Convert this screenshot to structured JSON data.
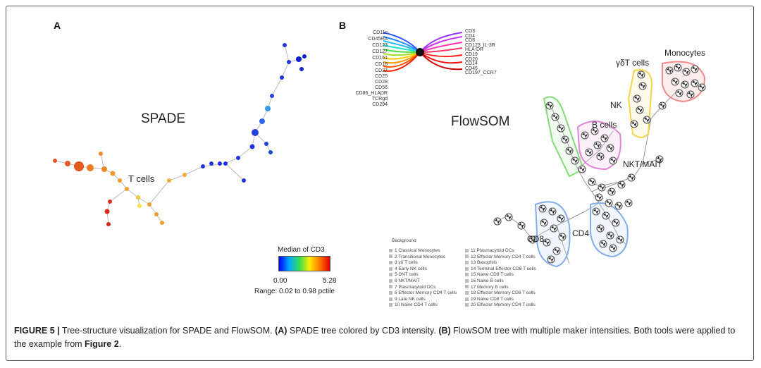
{
  "panel_a": {
    "letter": "A",
    "title": "SPADE",
    "label_tcells": "T cells",
    "colorbar": {
      "title": "Median of CD3",
      "min_label": "0.00",
      "max_label": "5.28",
      "range_label": "Range: 0.02 to 0.98 pctile",
      "gradient": [
        "#0000ff",
        "#00aaff",
        "#33dd55",
        "#ffee00",
        "#ff7700",
        "#dd0000"
      ]
    }
  },
  "panel_b": {
    "letter": "B",
    "title": "FlowSOM",
    "radial_markers_left": [
      "CD11c",
      "CD45RA",
      "CD123",
      "CD127",
      "CD161",
      "CD16",
      "CD27",
      "CD25",
      "CD28",
      "CD56",
      "CD86_HLADR",
      "TCRgd",
      "CD294"
    ],
    "radial_markers_right": [
      "CD3",
      "CD4",
      "CD8",
      "CD123_IL-3R",
      "HLA-DR",
      "CD19",
      "CD20",
      "CD14",
      "CD45",
      "CD197_CCR7"
    ],
    "cluster_labels": {
      "monocytes": "Monocytes",
      "gdt": "γδT cells",
      "nk": "NK",
      "bcells": "B cells",
      "nkt": "NKT/MAIT",
      "cd8": "CD8",
      "cd4": "CD4"
    },
    "legend_title": "Background",
    "legend_col1": [
      "1 Classical Monocytes",
      "2 Transitional Monocytes",
      "3 γδ T cells",
      "4 Early NK cells",
      "5 DNT cells",
      "6 NKT/MAIT",
      "7 Plasmacytoid DCs",
      "8 Effector Memory CD4 T cells",
      "9 Late NK cells",
      "10 Naive CD4 T cells"
    ],
    "legend_col2": [
      "11 Plasmacytoid DCs",
      "12 Effector Memory CD4 T cells",
      "13 Basophils",
      "14 Terminal Effector CD8 T cells",
      "15 Naive CD8 T cells",
      "16 Naive B cells",
      "17 Memory B cells",
      "18 Effector Memory CD8 T cells",
      "19 Naive CD8 T cells",
      "20 Effector Memory CD4 T cells"
    ]
  },
  "caption": {
    "figure_label": "FIGURE 5 |",
    "text_1": " Tree-structure visualization for SPADE and FlowSOM. ",
    "bold_a": "(A)",
    "text_2": " SPADE tree colored by CD3 intensity. ",
    "bold_b": "(B)",
    "text_3": " FlowSOM tree with multiple maker intensities. Both tools were applied to the example from ",
    "bold_fig": "Figure 2",
    "text_4": "."
  }
}
